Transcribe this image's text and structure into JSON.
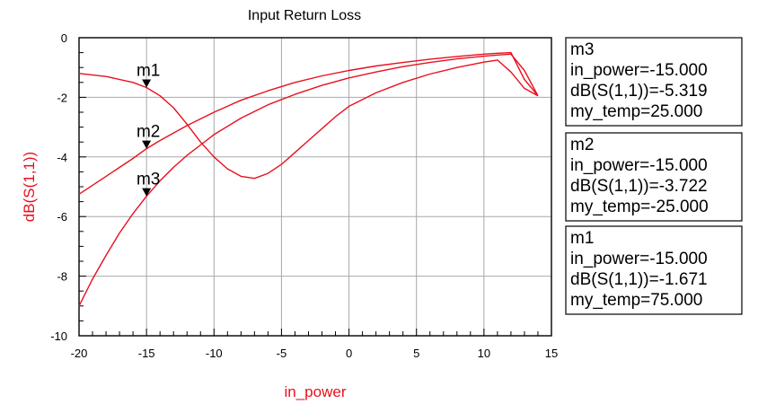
{
  "chart_data": {
    "type": "line",
    "title": "Input Return Loss",
    "xlabel": "in_power",
    "ylabel": "dB(S(1,1))",
    "label_color": "#e8101e",
    "line_color": "#e8101e",
    "xlim": [
      -20,
      15
    ],
    "ylim": [
      -10,
      0
    ],
    "x_ticks": [
      -20,
      -15,
      -10,
      -5,
      0,
      5,
      10,
      15
    ],
    "y_ticks": [
      -10,
      -8,
      -6,
      -4,
      -2,
      0
    ],
    "grid": true,
    "series": [
      {
        "my_temp": 75,
        "points": [
          [
            -20,
            -1.2
          ],
          [
            -18,
            -1.3
          ],
          [
            -16,
            -1.5
          ],
          [
            -15,
            -1.671
          ],
          [
            -14,
            -1.95
          ],
          [
            -13,
            -2.35
          ],
          [
            -12,
            -2.9
          ],
          [
            -11,
            -3.5
          ],
          [
            -10,
            -4.0
          ],
          [
            -9,
            -4.4
          ],
          [
            -8,
            -4.65
          ],
          [
            -7,
            -4.72
          ],
          [
            -6,
            -4.55
          ],
          [
            -5,
            -4.25
          ],
          [
            -4,
            -3.85
          ],
          [
            -3,
            -3.45
          ],
          [
            -2,
            -3.05
          ],
          [
            -1,
            -2.65
          ],
          [
            0,
            -2.3
          ],
          [
            2,
            -1.85
          ],
          [
            4,
            -1.5
          ],
          [
            6,
            -1.22
          ],
          [
            8,
            -1.0
          ],
          [
            10,
            -0.82
          ],
          [
            11,
            -0.75
          ],
          [
            12,
            -1.15
          ],
          [
            13,
            -1.7
          ],
          [
            14,
            -1.95
          ]
        ]
      },
      {
        "my_temp": -25,
        "points": [
          [
            -20,
            -5.25
          ],
          [
            -18,
            -4.65
          ],
          [
            -16,
            -4.05
          ],
          [
            -15,
            -3.722
          ],
          [
            -14,
            -3.45
          ],
          [
            -12,
            -2.95
          ],
          [
            -10,
            -2.5
          ],
          [
            -8,
            -2.1
          ],
          [
            -6,
            -1.78
          ],
          [
            -4,
            -1.5
          ],
          [
            -2,
            -1.28
          ],
          [
            0,
            -1.1
          ],
          [
            2,
            -0.95
          ],
          [
            4,
            -0.83
          ],
          [
            6,
            -0.72
          ],
          [
            8,
            -0.63
          ],
          [
            10,
            -0.55
          ],
          [
            11,
            -0.52
          ],
          [
            12,
            -0.5
          ],
          [
            13,
            -1.4
          ],
          [
            14,
            -1.95
          ]
        ]
      },
      {
        "my_temp": 25,
        "points": [
          [
            -20,
            -9.0
          ],
          [
            -19,
            -8.1
          ],
          [
            -18,
            -7.3
          ],
          [
            -17,
            -6.55
          ],
          [
            -16,
            -5.9
          ],
          [
            -15,
            -5.319
          ],
          [
            -14,
            -4.8
          ],
          [
            -13,
            -4.35
          ],
          [
            -12,
            -3.95
          ],
          [
            -11,
            -3.6
          ],
          [
            -10,
            -3.25
          ],
          [
            -8,
            -2.7
          ],
          [
            -6,
            -2.25
          ],
          [
            -4,
            -1.9
          ],
          [
            -2,
            -1.6
          ],
          [
            0,
            -1.35
          ],
          [
            2,
            -1.15
          ],
          [
            4,
            -0.97
          ],
          [
            6,
            -0.83
          ],
          [
            8,
            -0.71
          ],
          [
            10,
            -0.62
          ],
          [
            11,
            -0.58
          ],
          [
            12,
            -0.55
          ],
          [
            13,
            -1.1
          ],
          [
            14,
            -1.95
          ]
        ]
      }
    ],
    "markers": [
      {
        "name": "m1",
        "x": -15,
        "y": -1.671
      },
      {
        "name": "m2",
        "x": -15,
        "y": -3.722
      },
      {
        "name": "m3",
        "x": -15,
        "y": -5.319
      }
    ],
    "readouts": [
      {
        "lines": [
          "m3",
          "in_power=-15.000",
          "dB(S(1,1))=-5.319",
          "my_temp=25.000"
        ]
      },
      {
        "lines": [
          "m2",
          "in_power=-15.000",
          "dB(S(1,1))=-3.722",
          "my_temp=-25.000"
        ]
      },
      {
        "lines": [
          "m1",
          "in_power=-15.000",
          "dB(S(1,1))=-1.671",
          "my_temp=75.000"
        ]
      }
    ]
  }
}
